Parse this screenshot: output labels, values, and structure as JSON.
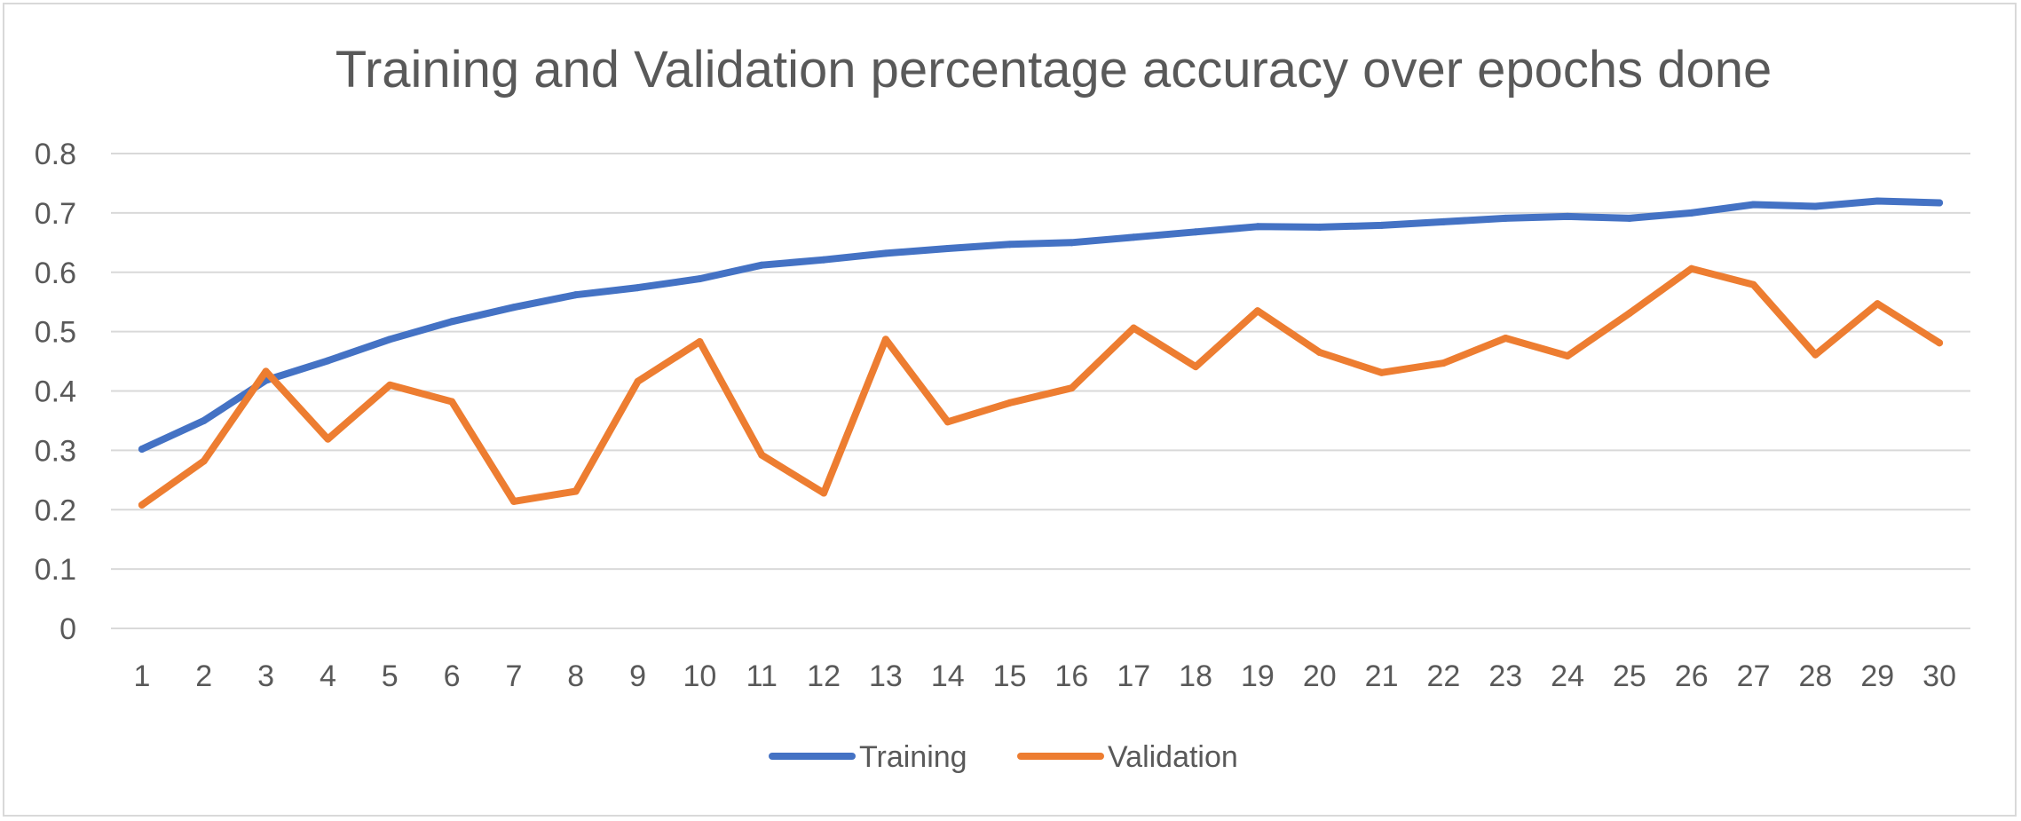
{
  "chart_data": {
    "type": "line",
    "title": "Training and Validation percentage accuracy over epochs done",
    "xlabel": "",
    "ylabel": "",
    "ylim": [
      0,
      0.8
    ],
    "yticks": [
      "0",
      "0.1",
      "0.2",
      "0.3",
      "0.4",
      "0.5",
      "0.6",
      "0.7",
      "0.8"
    ],
    "categories": [
      "1",
      "2",
      "3",
      "4",
      "5",
      "6",
      "7",
      "8",
      "9",
      "10",
      "11",
      "12",
      "13",
      "14",
      "15",
      "16",
      "17",
      "18",
      "19",
      "20",
      "21",
      "22",
      "23",
      "24",
      "25",
      "26",
      "27",
      "28",
      "29",
      "30"
    ],
    "grid": true,
    "legend_position": "bottom",
    "series": [
      {
        "name": "Training",
        "color": "#4472c4",
        "values": [
          0.302,
          0.35,
          0.418,
          0.451,
          0.487,
          0.517,
          0.541,
          0.562,
          0.574,
          0.589,
          0.612,
          0.621,
          0.632,
          0.64,
          0.647,
          0.65,
          0.659,
          0.668,
          0.677,
          0.676,
          0.679,
          0.685,
          0.691,
          0.694,
          0.691,
          0.7,
          0.714,
          0.711,
          0.72,
          0.717
        ]
      },
      {
        "name": "Validation",
        "color": "#ed7d31",
        "values": [
          0.208,
          0.282,
          0.433,
          0.319,
          0.41,
          0.382,
          0.214,
          0.231,
          0.416,
          0.483,
          0.292,
          0.228,
          0.487,
          0.348,
          0.38,
          0.405,
          0.506,
          0.441,
          0.535,
          0.465,
          0.431,
          0.447,
          0.489,
          0.459,
          0.531,
          0.606,
          0.579,
          0.461,
          0.547,
          0.481
        ]
      }
    ]
  }
}
